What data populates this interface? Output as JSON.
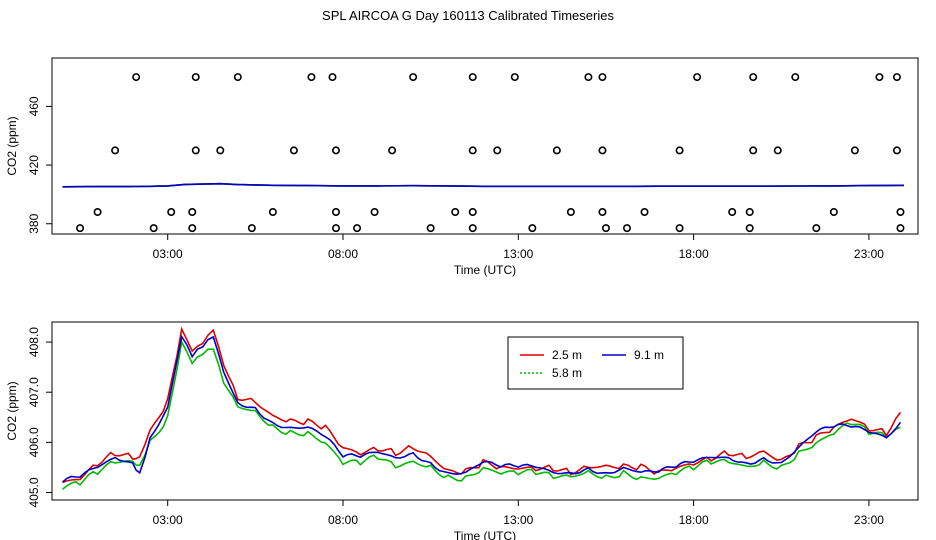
{
  "title": "SPL AIRCOA G  Day 160113  Calibrated Timeseries",
  "chart_data": [
    {
      "type": "scatter",
      "title": "",
      "xlabel": "Time (UTC)",
      "ylabel": "CO2 (ppm)",
      "x_unit": "hours",
      "xlim": [
        -0.3,
        24.4
      ],
      "ylim": [
        373,
        493
      ],
      "x_ticks": [
        3,
        8,
        13,
        18,
        23
      ],
      "x_tick_labels": [
        "03:00",
        "08:00",
        "13:00",
        "18:00",
        "23:00"
      ],
      "y_ticks": [
        380,
        420,
        460
      ],
      "y_tick_labels": [
        "380",
        "420",
        "460"
      ],
      "point_levels": [
        {
          "y": 377,
          "x": [
            0.5,
            2.6,
            3.7,
            5.4,
            7.8,
            8.4,
            10.5,
            11.7,
            13.4,
            15.5,
            16.1,
            17.6,
            19.6,
            21.5,
            23.9
          ]
        },
        {
          "y": 388,
          "x": [
            1.0,
            3.1,
            3.7,
            6.0,
            7.8,
            8.9,
            11.2,
            11.7,
            14.5,
            15.4,
            16.6,
            19.1,
            19.6,
            22.0,
            23.9
          ]
        },
        {
          "y": 430,
          "x": [
            1.5,
            3.8,
            4.5,
            6.6,
            7.8,
            9.4,
            11.7,
            12.4,
            14.1,
            15.4,
            17.6,
            19.7,
            20.4,
            22.6,
            23.8
          ]
        },
        {
          "y": 480,
          "x": [
            2.1,
            3.8,
            5.0,
            7.1,
            7.7,
            10.0,
            11.7,
            12.9,
            15.0,
            15.4,
            18.1,
            19.7,
            20.9,
            23.3,
            23.8
          ]
        }
      ],
      "series": [
        {
          "name": "2.5 m",
          "color": "#dd0000",
          "x": [
            0.0,
            1.0,
            2.0,
            2.5,
            3.0,
            3.5,
            4.0,
            4.5,
            5.0,
            6.0,
            7.0,
            8.0,
            9.0,
            10.0,
            11.0,
            12.0,
            13.0,
            14.0,
            15.0,
            16.0,
            17.0,
            18.0,
            19.0,
            20.0,
            21.0,
            22.0,
            23.0,
            24.0
          ],
          "values": [
            405.2,
            405.3,
            405.4,
            405.5,
            405.8,
            406.8,
            407.0,
            407.3,
            406.7,
            406.2,
            406.0,
            405.8,
            405.8,
            405.9,
            405.8,
            405.5,
            405.5,
            405.5,
            405.5,
            405.5,
            405.6,
            405.6,
            405.6,
            405.6,
            405.7,
            405.8,
            406.0,
            406.2
          ]
        },
        {
          "name": "5.8 m",
          "color": "#00bb00",
          "x": [
            0.0,
            1.0,
            2.0,
            2.5,
            3.0,
            3.5,
            4.0,
            4.5,
            5.0,
            6.0,
            7.0,
            8.0,
            9.0,
            10.0,
            11.0,
            12.0,
            13.0,
            14.0,
            15.0,
            16.0,
            17.0,
            18.0,
            19.0,
            20.0,
            21.0,
            22.0,
            23.0,
            24.0
          ],
          "values": [
            405.2,
            405.3,
            405.4,
            405.5,
            405.8,
            406.8,
            407.0,
            407.3,
            406.7,
            406.2,
            406.0,
            405.8,
            405.8,
            405.9,
            405.8,
            405.5,
            405.5,
            405.5,
            405.5,
            405.5,
            405.6,
            405.6,
            405.6,
            405.6,
            405.7,
            405.8,
            406.0,
            406.2
          ]
        },
        {
          "name": "9.1 m",
          "color": "#0000cc",
          "x": [
            0.0,
            1.0,
            2.0,
            2.5,
            3.0,
            3.5,
            4.0,
            4.5,
            5.0,
            6.0,
            7.0,
            8.0,
            9.0,
            10.0,
            11.0,
            12.0,
            13.0,
            14.0,
            15.0,
            16.0,
            17.0,
            18.0,
            19.0,
            20.0,
            21.0,
            22.0,
            23.0,
            24.0
          ],
          "values": [
            405.2,
            405.3,
            405.4,
            405.5,
            405.8,
            406.8,
            407.0,
            407.3,
            406.7,
            406.2,
            406.0,
            405.8,
            405.8,
            405.9,
            405.8,
            405.5,
            405.5,
            405.5,
            405.5,
            405.5,
            405.6,
            405.6,
            405.6,
            405.6,
            405.7,
            405.8,
            406.0,
            406.2
          ]
        }
      ]
    },
    {
      "type": "line",
      "title": "",
      "xlabel": "Time (UTC)",
      "ylabel": "CO2 (ppm)",
      "x_unit": "hours",
      "xlim": [
        -0.3,
        24.4
      ],
      "ylim": [
        404.85,
        408.4
      ],
      "x_ticks": [
        3,
        8,
        13,
        18,
        23
      ],
      "x_tick_labels": [
        "03:00",
        "08:00",
        "13:00",
        "18:00",
        "23:00"
      ],
      "y_ticks": [
        405.0,
        406.0,
        407.0,
        408.0
      ],
      "y_tick_labels": [
        "405.0",
        "406.0",
        "407.0",
        "408.0"
      ],
      "legend": {
        "placement": "top-center",
        "entries": [
          "2.5 m",
          "9.1 m",
          "5.8 m"
        ]
      },
      "series": [
        {
          "name": "2.5 m",
          "color": "#dd0000",
          "x": [
            0.0,
            0.5,
            1.0,
            1.5,
            2.0,
            2.2,
            2.5,
            3.0,
            3.4,
            3.7,
            4.0,
            4.3,
            4.6,
            5.0,
            5.5,
            6.0,
            6.5,
            7.0,
            7.5,
            8.0,
            8.5,
            9.0,
            9.5,
            10.0,
            10.5,
            11.0,
            11.5,
            12.0,
            12.5,
            13.0,
            13.5,
            14.0,
            14.5,
            15.0,
            15.5,
            16.0,
            16.5,
            17.0,
            17.5,
            18.0,
            18.5,
            19.0,
            19.5,
            20.0,
            20.5,
            21.0,
            21.5,
            22.0,
            22.5,
            23.0,
            23.5,
            23.9
          ],
          "values": [
            405.2,
            405.3,
            405.6,
            405.8,
            405.7,
            405.7,
            406.2,
            406.8,
            408.2,
            407.8,
            408.0,
            408.3,
            407.6,
            406.9,
            406.8,
            406.5,
            406.4,
            406.4,
            406.3,
            405.9,
            405.8,
            405.9,
            405.8,
            405.9,
            405.7,
            405.4,
            405.4,
            405.6,
            405.5,
            405.5,
            405.5,
            405.5,
            405.4,
            405.5,
            405.5,
            405.5,
            405.5,
            405.4,
            405.5,
            405.6,
            405.7,
            405.8,
            405.7,
            405.8,
            405.6,
            405.9,
            406.1,
            406.3,
            406.5,
            406.3,
            406.2,
            406.6
          ]
        },
        {
          "name": "5.8 m",
          "color": "#00bb00",
          "x": [
            0.0,
            0.5,
            1.0,
            1.5,
            2.0,
            2.2,
            2.5,
            3.0,
            3.4,
            3.7,
            4.0,
            4.3,
            4.6,
            5.0,
            5.5,
            6.0,
            6.5,
            7.0,
            7.5,
            8.0,
            8.5,
            9.0,
            9.5,
            10.0,
            10.5,
            11.0,
            11.5,
            12.0,
            12.5,
            13.0,
            13.5,
            14.0,
            14.5,
            15.0,
            15.5,
            16.0,
            16.5,
            17.0,
            17.5,
            18.0,
            18.5,
            19.0,
            19.5,
            20.0,
            20.5,
            21.0,
            21.5,
            22.0,
            22.5,
            23.0,
            23.5,
            23.9
          ],
          "values": [
            405.1,
            405.2,
            405.4,
            405.6,
            405.6,
            405.5,
            406.0,
            406.5,
            408.0,
            407.6,
            407.8,
            407.9,
            407.2,
            406.7,
            406.6,
            406.3,
            406.2,
            406.2,
            406.0,
            405.6,
            405.6,
            405.7,
            405.5,
            405.6,
            405.5,
            405.3,
            405.3,
            405.5,
            405.4,
            405.4,
            405.4,
            405.3,
            405.3,
            405.4,
            405.3,
            405.4,
            405.3,
            405.3,
            405.4,
            405.5,
            405.6,
            405.6,
            405.5,
            405.6,
            405.5,
            405.8,
            406.0,
            406.2,
            406.4,
            406.2,
            406.1,
            406.3
          ]
        },
        {
          "name": "9.1 m",
          "color": "#0000cc",
          "x": [
            0.0,
            0.5,
            1.0,
            1.5,
            2.0,
            2.2,
            2.5,
            3.0,
            3.4,
            3.7,
            4.0,
            4.3,
            4.6,
            5.0,
            5.5,
            6.0,
            6.5,
            7.0,
            7.5,
            8.0,
            8.5,
            9.0,
            9.5,
            10.0,
            10.5,
            11.0,
            11.5,
            12.0,
            12.5,
            13.0,
            13.5,
            14.0,
            14.5,
            15.0,
            15.5,
            16.0,
            16.5,
            17.0,
            17.5,
            18.0,
            18.5,
            19.0,
            19.5,
            20.0,
            20.5,
            21.0,
            21.5,
            22.0,
            22.5,
            23.0,
            23.5,
            23.9
          ],
          "values": [
            405.2,
            405.3,
            405.5,
            405.7,
            405.6,
            405.4,
            406.1,
            406.7,
            408.1,
            407.7,
            407.9,
            408.1,
            407.4,
            406.8,
            406.7,
            406.4,
            406.3,
            406.3,
            406.1,
            405.7,
            405.7,
            405.8,
            405.7,
            405.8,
            405.6,
            405.4,
            405.4,
            405.6,
            405.5,
            405.5,
            405.5,
            405.4,
            405.4,
            405.5,
            405.4,
            405.5,
            405.4,
            405.4,
            405.5,
            405.6,
            405.7,
            405.7,
            405.6,
            405.7,
            405.6,
            405.9,
            406.2,
            406.3,
            406.3,
            406.2,
            406.1,
            406.4
          ]
        }
      ]
    }
  ]
}
